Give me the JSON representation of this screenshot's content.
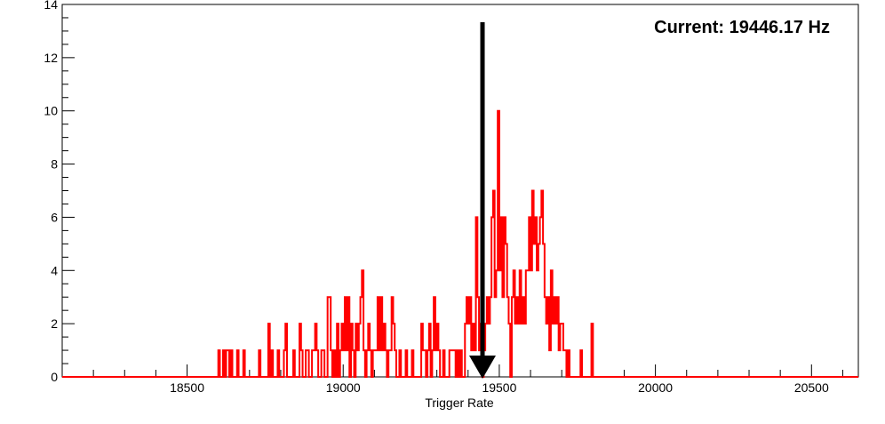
{
  "chart_data": {
    "type": "histogram",
    "title": "",
    "xlabel": "Trigger Rate",
    "ylabel": "",
    "annotation": "Current: 19446.17 Hz",
    "marker_x": 19446.17,
    "xlim": [
      18100,
      20650
    ],
    "ylim": [
      0,
      14
    ],
    "x_ticks": [
      18500,
      19000,
      19500,
      20000,
      20500
    ],
    "y_ticks": [
      0,
      2,
      4,
      6,
      8,
      10,
      12,
      14
    ],
    "grid": false,
    "line_color": "#ff0000",
    "marker_color": "#000000",
    "bins": [
      {
        "x": 18600,
        "count": 1
      },
      {
        "x": 18605,
        "count": 0
      },
      {
        "x": 18610,
        "count": 0
      },
      {
        "x": 18615,
        "count": 1
      },
      {
        "x": 18620,
        "count": 0
      },
      {
        "x": 18625,
        "count": 1
      },
      {
        "x": 18630,
        "count": 1
      },
      {
        "x": 18635,
        "count": 0
      },
      {
        "x": 18640,
        "count": 1
      },
      {
        "x": 18660,
        "count": 1
      },
      {
        "x": 18665,
        "count": 0
      },
      {
        "x": 18680,
        "count": 1
      },
      {
        "x": 18685,
        "count": 0
      },
      {
        "x": 18730,
        "count": 1
      },
      {
        "x": 18735,
        "count": 0
      },
      {
        "x": 18760,
        "count": 2
      },
      {
        "x": 18765,
        "count": 0
      },
      {
        "x": 18770,
        "count": 1
      },
      {
        "x": 18775,
        "count": 0
      },
      {
        "x": 18790,
        "count": 1
      },
      {
        "x": 18795,
        "count": 0
      },
      {
        "x": 18810,
        "count": 1
      },
      {
        "x": 18815,
        "count": 2
      },
      {
        "x": 18820,
        "count": 0
      },
      {
        "x": 18840,
        "count": 1
      },
      {
        "x": 18845,
        "count": 0
      },
      {
        "x": 18860,
        "count": 2
      },
      {
        "x": 18865,
        "count": 1
      },
      {
        "x": 18870,
        "count": 0
      },
      {
        "x": 18880,
        "count": 1
      },
      {
        "x": 18885,
        "count": 1
      },
      {
        "x": 18890,
        "count": 0
      },
      {
        "x": 18900,
        "count": 1
      },
      {
        "x": 18905,
        "count": 1
      },
      {
        "x": 18910,
        "count": 2
      },
      {
        "x": 18915,
        "count": 1
      },
      {
        "x": 18920,
        "count": 0
      },
      {
        "x": 18930,
        "count": 1
      },
      {
        "x": 18935,
        "count": 1
      },
      {
        "x": 18940,
        "count": 0
      },
      {
        "x": 18950,
        "count": 3
      },
      {
        "x": 18955,
        "count": 3
      },
      {
        "x": 18960,
        "count": 1
      },
      {
        "x": 18965,
        "count": 0
      },
      {
        "x": 18970,
        "count": 1
      },
      {
        "x": 18975,
        "count": 0
      },
      {
        "x": 18980,
        "count": 2
      },
      {
        "x": 18985,
        "count": 0
      },
      {
        "x": 18990,
        "count": 1
      },
      {
        "x": 18995,
        "count": 2
      },
      {
        "x": 19000,
        "count": 1
      },
      {
        "x": 19005,
        "count": 3
      },
      {
        "x": 19010,
        "count": 1
      },
      {
        "x": 19015,
        "count": 3
      },
      {
        "x": 19020,
        "count": 0
      },
      {
        "x": 19025,
        "count": 2
      },
      {
        "x": 19030,
        "count": 1
      },
      {
        "x": 19035,
        "count": 0
      },
      {
        "x": 19040,
        "count": 2
      },
      {
        "x": 19045,
        "count": 1
      },
      {
        "x": 19050,
        "count": 2
      },
      {
        "x": 19055,
        "count": 3
      },
      {
        "x": 19060,
        "count": 4
      },
      {
        "x": 19065,
        "count": 1
      },
      {
        "x": 19070,
        "count": 0
      },
      {
        "x": 19075,
        "count": 1
      },
      {
        "x": 19080,
        "count": 2
      },
      {
        "x": 19085,
        "count": 1
      },
      {
        "x": 19090,
        "count": 0
      },
      {
        "x": 19095,
        "count": 1
      },
      {
        "x": 19100,
        "count": 1
      },
      {
        "x": 19105,
        "count": 1
      },
      {
        "x": 19110,
        "count": 3
      },
      {
        "x": 19115,
        "count": 1
      },
      {
        "x": 19120,
        "count": 3
      },
      {
        "x": 19125,
        "count": 1
      },
      {
        "x": 19130,
        "count": 2
      },
      {
        "x": 19135,
        "count": 1
      },
      {
        "x": 19140,
        "count": 0
      },
      {
        "x": 19145,
        "count": 1
      },
      {
        "x": 19150,
        "count": 1
      },
      {
        "x": 19155,
        "count": 3
      },
      {
        "x": 19160,
        "count": 2
      },
      {
        "x": 19165,
        "count": 1
      },
      {
        "x": 19170,
        "count": 0
      },
      {
        "x": 19180,
        "count": 1
      },
      {
        "x": 19185,
        "count": 0
      },
      {
        "x": 19200,
        "count": 1
      },
      {
        "x": 19205,
        "count": 0
      },
      {
        "x": 19220,
        "count": 1
      },
      {
        "x": 19225,
        "count": 0
      },
      {
        "x": 19250,
        "count": 2
      },
      {
        "x": 19255,
        "count": 1
      },
      {
        "x": 19260,
        "count": 1
      },
      {
        "x": 19265,
        "count": 0
      },
      {
        "x": 19270,
        "count": 1
      },
      {
        "x": 19275,
        "count": 2
      },
      {
        "x": 19280,
        "count": 0
      },
      {
        "x": 19285,
        "count": 1
      },
      {
        "x": 19290,
        "count": 3
      },
      {
        "x": 19295,
        "count": 1
      },
      {
        "x": 19300,
        "count": 2
      },
      {
        "x": 19305,
        "count": 1
      },
      {
        "x": 19310,
        "count": 0
      },
      {
        "x": 19320,
        "count": 1
      },
      {
        "x": 19325,
        "count": 0
      },
      {
        "x": 19340,
        "count": 1
      },
      {
        "x": 19345,
        "count": 1
      },
      {
        "x": 19350,
        "count": 1
      },
      {
        "x": 19355,
        "count": 1
      },
      {
        "x": 19360,
        "count": 0
      },
      {
        "x": 19365,
        "count": 1
      },
      {
        "x": 19370,
        "count": 0
      },
      {
        "x": 19375,
        "count": 1
      },
      {
        "x": 19380,
        "count": 0
      },
      {
        "x": 19390,
        "count": 2
      },
      {
        "x": 19395,
        "count": 3
      },
      {
        "x": 19400,
        "count": 2
      },
      {
        "x": 19405,
        "count": 3
      },
      {
        "x": 19410,
        "count": 1
      },
      {
        "x": 19415,
        "count": 2
      },
      {
        "x": 19420,
        "count": 1
      },
      {
        "x": 19425,
        "count": 6
      },
      {
        "x": 19430,
        "count": 3
      },
      {
        "x": 19435,
        "count": 1
      },
      {
        "x": 19440,
        "count": 2
      },
      {
        "x": 19445,
        "count": 0
      },
      {
        "x": 19450,
        "count": 1
      },
      {
        "x": 19455,
        "count": 2
      },
      {
        "x": 19460,
        "count": 3
      },
      {
        "x": 19465,
        "count": 2
      },
      {
        "x": 19470,
        "count": 3
      },
      {
        "x": 19475,
        "count": 6
      },
      {
        "x": 19480,
        "count": 7
      },
      {
        "x": 19485,
        "count": 3
      },
      {
        "x": 19490,
        "count": 4
      },
      {
        "x": 19495,
        "count": 10
      },
      {
        "x": 19500,
        "count": 4
      },
      {
        "x": 19505,
        "count": 6
      },
      {
        "x": 19510,
        "count": 3
      },
      {
        "x": 19515,
        "count": 6
      },
      {
        "x": 19520,
        "count": 5
      },
      {
        "x": 19525,
        "count": 3
      },
      {
        "x": 19530,
        "count": 2
      },
      {
        "x": 19535,
        "count": 0
      },
      {
        "x": 19540,
        "count": 3
      },
      {
        "x": 19545,
        "count": 4
      },
      {
        "x": 19550,
        "count": 2
      },
      {
        "x": 19555,
        "count": 3
      },
      {
        "x": 19560,
        "count": 2
      },
      {
        "x": 19565,
        "count": 4
      },
      {
        "x": 19570,
        "count": 2
      },
      {
        "x": 19575,
        "count": 3
      },
      {
        "x": 19580,
        "count": 2
      },
      {
        "x": 19585,
        "count": 4
      },
      {
        "x": 19590,
        "count": 4
      },
      {
        "x": 19595,
        "count": 6
      },
      {
        "x": 19600,
        "count": 4
      },
      {
        "x": 19605,
        "count": 7
      },
      {
        "x": 19610,
        "count": 5
      },
      {
        "x": 19615,
        "count": 6
      },
      {
        "x": 19620,
        "count": 4
      },
      {
        "x": 19625,
        "count": 5
      },
      {
        "x": 19630,
        "count": 6
      },
      {
        "x": 19635,
        "count": 7
      },
      {
        "x": 19640,
        "count": 5
      },
      {
        "x": 19645,
        "count": 3
      },
      {
        "x": 19650,
        "count": 2
      },
      {
        "x": 19655,
        "count": 3
      },
      {
        "x": 19660,
        "count": 1
      },
      {
        "x": 19665,
        "count": 4
      },
      {
        "x": 19670,
        "count": 2
      },
      {
        "x": 19675,
        "count": 3
      },
      {
        "x": 19680,
        "count": 2
      },
      {
        "x": 19685,
        "count": 3
      },
      {
        "x": 19690,
        "count": 1
      },
      {
        "x": 19695,
        "count": 2
      },
      {
        "x": 19700,
        "count": 2
      },
      {
        "x": 19705,
        "count": 1
      },
      {
        "x": 19710,
        "count": 1
      },
      {
        "x": 19715,
        "count": 0
      },
      {
        "x": 19720,
        "count": 1
      },
      {
        "x": 19725,
        "count": 0
      },
      {
        "x": 19760,
        "count": 1
      },
      {
        "x": 19765,
        "count": 0
      },
      {
        "x": 19795,
        "count": 2
      },
      {
        "x": 19800,
        "count": 0
      }
    ]
  }
}
